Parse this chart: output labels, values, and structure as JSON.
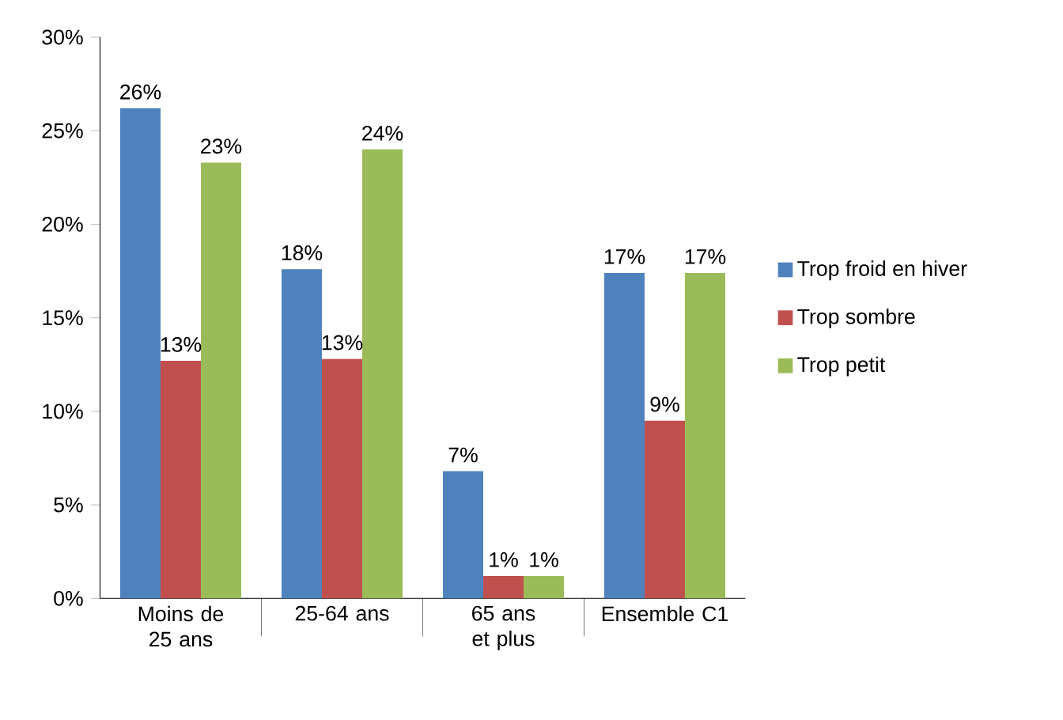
{
  "chart_data": {
    "type": "bar",
    "categories": [
      "Moins de 25 ans",
      "25-64 ans",
      "65 ans et plus",
      "Ensemble C1"
    ],
    "series": [
      {
        "name": "Trop froid en hiver",
        "color": "#4f81bd",
        "values": [
          26.2,
          17.6,
          6.8,
          17.4
        ],
        "value_labels": [
          "26%",
          "18%",
          "7%",
          "17%"
        ]
      },
      {
        "name": "Trop sombre",
        "color": "#c0504d",
        "values": [
          12.7,
          12.8,
          1.2,
          9.5
        ],
        "value_labels": [
          "13%",
          "13%",
          "1%",
          "9%"
        ]
      },
      {
        "name": "Trop petit",
        "color": "#9bbb59",
        "values": [
          23.3,
          24.0,
          1.2,
          17.4
        ],
        "value_labels": [
          "23%",
          "24%",
          "1%",
          "17%"
        ]
      }
    ],
    "ylim": [
      0,
      30
    ],
    "yticks": [
      {
        "value": 0,
        "label": "0%"
      },
      {
        "value": 5,
        "label": "5%"
      },
      {
        "value": 10,
        "label": "10%"
      },
      {
        "value": 15,
        "label": "15%"
      },
      {
        "value": 20,
        "label": "20%"
      },
      {
        "value": 25,
        "label": "25%"
      },
      {
        "value": 30,
        "label": "30%"
      }
    ],
    "grid": false,
    "legend": "right"
  }
}
